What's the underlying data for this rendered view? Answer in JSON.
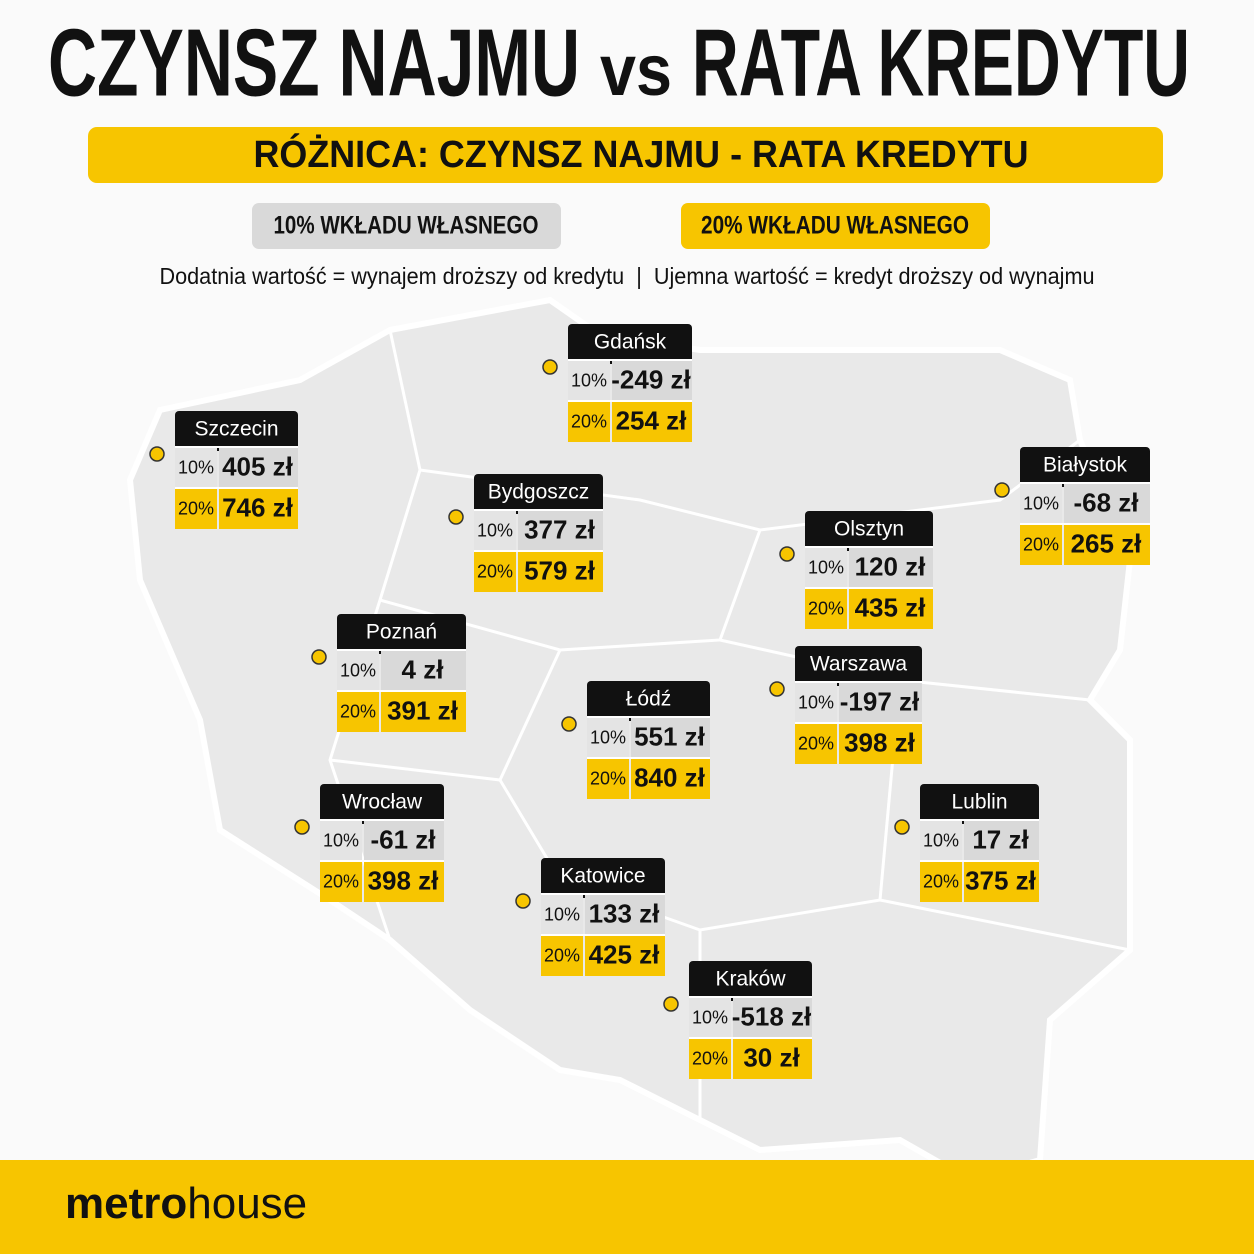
{
  "header": {
    "title": [
      "CZYNSZ NAJMU",
      "vs",
      "RATA KREDYTU"
    ],
    "subtitle": "RÓŻNICA: CZYNSZ NAJMU - RATA KREDYTU"
  },
  "legend": [
    "10% WKŁADU WŁASNEGO",
    "20% WKŁADU WŁASNEGO"
  ],
  "note": "Dodatnia wartość = wynajem droższy od kredytu  |  Ujemna wartość = kredyt droższy od wynajmu",
  "row_labels": [
    "10%",
    "20%"
  ],
  "cities": [
    {
      "name": "Gdańsk",
      "values": [
        "-249 zł",
        "254 zł"
      ]
    },
    {
      "name": "Szczecin",
      "values": [
        "405 zł",
        "746 zł"
      ]
    },
    {
      "name": "Bydgoszcz",
      "values": [
        "377 zł",
        "579 zł"
      ]
    },
    {
      "name": "Białystok",
      "values": [
        "-68 zł",
        "265 zł"
      ]
    },
    {
      "name": "Olsztyn",
      "values": [
        "120 zł",
        "435 zł"
      ]
    },
    {
      "name": "Poznań",
      "values": [
        "4 zł",
        "391 zł"
      ]
    },
    {
      "name": "Łódź",
      "values": [
        "551 zł",
        "840 zł"
      ]
    },
    {
      "name": "Warszawa",
      "values": [
        "-197 zł",
        "398 zł"
      ]
    },
    {
      "name": "Wrocław",
      "values": [
        "-61 zł",
        "398 zł"
      ]
    },
    {
      "name": "Lublin",
      "values": [
        "17 zł",
        "375 zł"
      ]
    },
    {
      "name": "Katowice",
      "values": [
        "133 zł",
        "425 zł"
      ]
    },
    {
      "name": "Kraków",
      "values": [
        "-518 zł",
        "30 zł"
      ]
    }
  ],
  "footer": {
    "logo": [
      "metro",
      "house"
    ]
  }
}
